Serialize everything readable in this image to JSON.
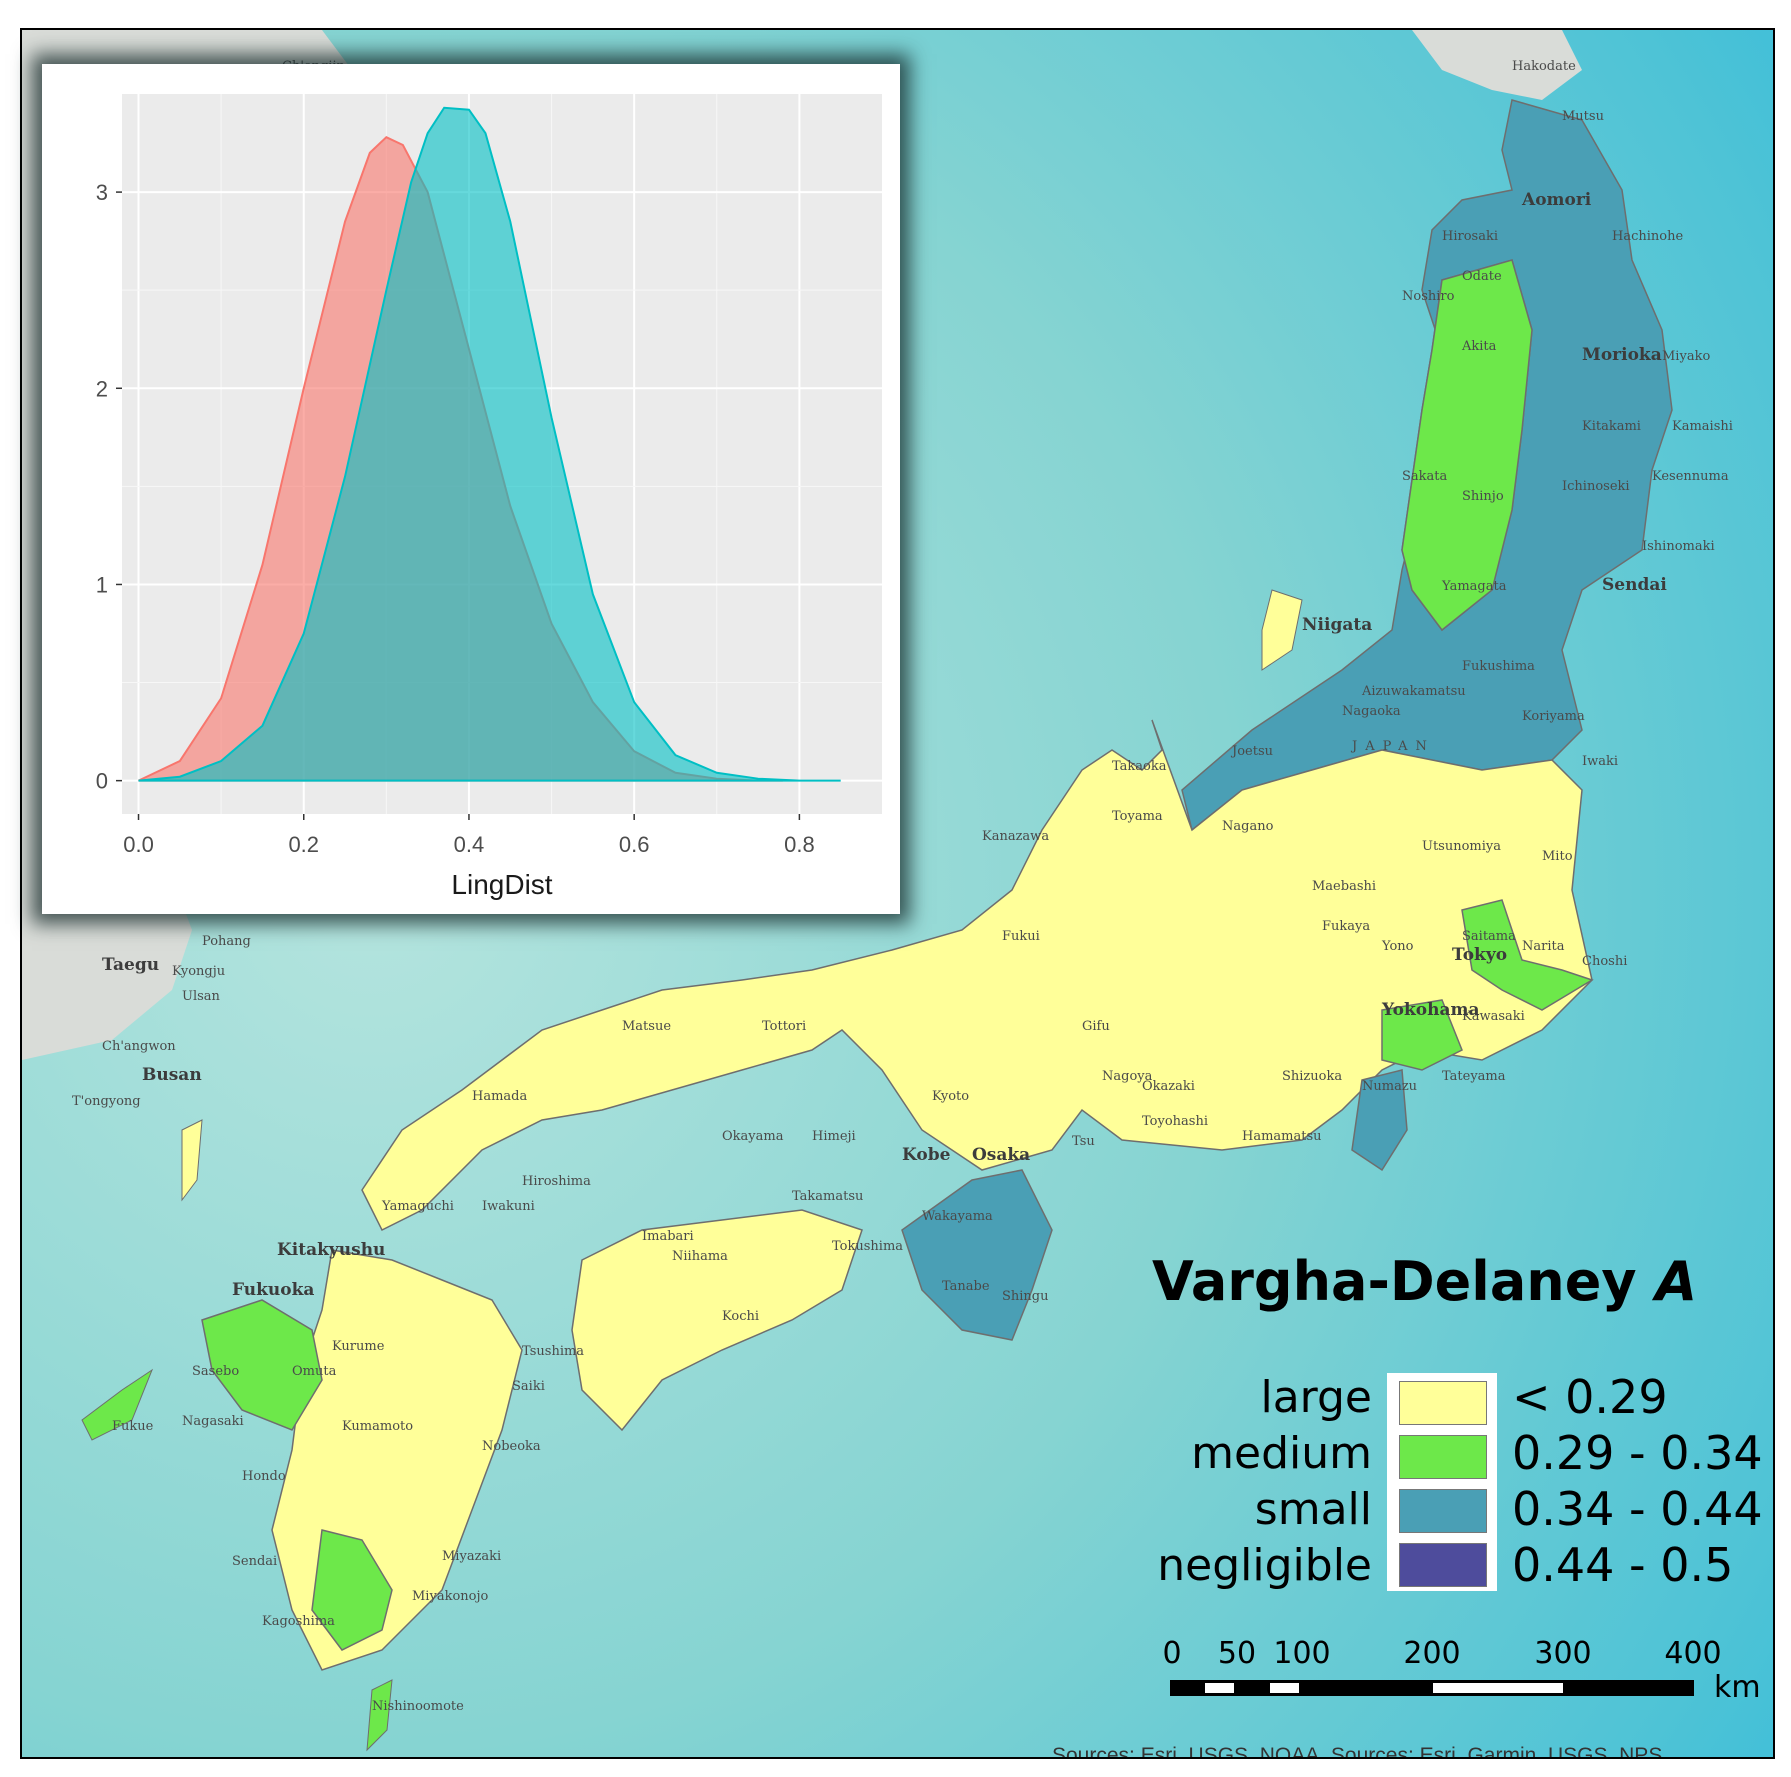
{
  "map": {
    "place_labels": [
      {
        "id": "hakodate",
        "text": "Hakodate"
      },
      {
        "id": "mutsu",
        "text": "Mutsu"
      },
      {
        "id": "aomori",
        "text": "Aomori"
      },
      {
        "id": "hirosaki",
        "text": "Hirosaki"
      },
      {
        "id": "hachinohe",
        "text": "Hachinohe"
      },
      {
        "id": "odate",
        "text": "Odate"
      },
      {
        "id": "noshiro",
        "text": "Noshiro"
      },
      {
        "id": "akita",
        "text": "Akita"
      },
      {
        "id": "morioka",
        "text": "Morioka"
      },
      {
        "id": "miyako",
        "text": "Miyako"
      },
      {
        "id": "kitakami",
        "text": "Kitakami"
      },
      {
        "id": "kamaishi",
        "text": "Kamaishi"
      },
      {
        "id": "sakata",
        "text": "Sakata"
      },
      {
        "id": "shinjo",
        "text": "Shinjo"
      },
      {
        "id": "ichinoseki",
        "text": "Ichinoseki"
      },
      {
        "id": "kesennuma",
        "text": "Kesennuma"
      },
      {
        "id": "ishinomaki",
        "text": "Ishinomaki"
      },
      {
        "id": "yamagata",
        "text": "Yamagata"
      },
      {
        "id": "sendai",
        "text": "Sendai"
      },
      {
        "id": "niigata",
        "text": "Niigata"
      },
      {
        "id": "fukushima",
        "text": "Fukushima"
      },
      {
        "id": "aizuwakamatsu",
        "text": "Aizuwakamatsu"
      },
      {
        "id": "nagaoka",
        "text": "Nagaoka"
      },
      {
        "id": "koriyama",
        "text": "Koriyama"
      },
      {
        "id": "japan",
        "text": "JAPAN"
      },
      {
        "id": "joetsu",
        "text": "Joetsu"
      },
      {
        "id": "iwaki",
        "text": "Iwaki"
      },
      {
        "id": "takaoka",
        "text": "Takaoka"
      },
      {
        "id": "kanazawa",
        "text": "Kanazawa"
      },
      {
        "id": "toyama",
        "text": "Toyama"
      },
      {
        "id": "nagano",
        "text": "Nagano"
      },
      {
        "id": "utsunomiya",
        "text": "Utsunomiya"
      },
      {
        "id": "mito",
        "text": "Mito"
      },
      {
        "id": "maebashi",
        "text": "Maebashi"
      },
      {
        "id": "fukaya",
        "text": "Fukaya"
      },
      {
        "id": "tokyo",
        "text": "Tokyo"
      },
      {
        "id": "narita",
        "text": "Narita"
      },
      {
        "id": "choshi",
        "text": "Choshi"
      },
      {
        "id": "yono",
        "text": "Yono"
      },
      {
        "id": "saitama",
        "text": "Saitama"
      },
      {
        "id": "kawasaki",
        "text": "Kawasaki"
      },
      {
        "id": "yokohama",
        "text": "Yokohama"
      },
      {
        "id": "tateyama",
        "text": "Tateyama"
      },
      {
        "id": "numazu",
        "text": "Numazu"
      },
      {
        "id": "shizuoka",
        "text": "Shizuoka"
      },
      {
        "id": "hamamatsu",
        "text": "Hamamatsu"
      },
      {
        "id": "toyohashi",
        "text": "Toyohashi"
      },
      {
        "id": "okazaki",
        "text": "Okazaki"
      },
      {
        "id": "gifu",
        "text": "Gifu"
      },
      {
        "id": "nagoya",
        "text": "Nagoya"
      },
      {
        "id": "fukui",
        "text": "Fukui"
      },
      {
        "id": "kyoto",
        "text": "Kyoto"
      },
      {
        "id": "osaka",
        "text": "Osaka"
      },
      {
        "id": "kobe",
        "text": "Kobe"
      },
      {
        "id": "tsu",
        "text": "Tsu"
      },
      {
        "id": "wakayama",
        "text": "Wakayama"
      },
      {
        "id": "tanabe",
        "text": "Tanabe"
      },
      {
        "id": "shingu",
        "text": "Shingu"
      },
      {
        "id": "himeji",
        "text": "Himeji"
      },
      {
        "id": "okayama",
        "text": "Okayama"
      },
      {
        "id": "tottori",
        "text": "Tottori"
      },
      {
        "id": "matsue",
        "text": "Matsue"
      },
      {
        "id": "hamada",
        "text": "Hamada"
      },
      {
        "id": "hiroshima",
        "text": "Hiroshima"
      },
      {
        "id": "iwakuni",
        "text": "Iwakuni"
      },
      {
        "id": "yamaguchi",
        "text": "Yamaguchi"
      },
      {
        "id": "takamatsu",
        "text": "Takamatsu"
      },
      {
        "id": "tokushima",
        "text": "Tokushima"
      },
      {
        "id": "imabari",
        "text": "Imabari"
      },
      {
        "id": "niihama",
        "text": "Niihama"
      },
      {
        "id": "kochi",
        "text": "Kochi"
      },
      {
        "id": "kitakyushu",
        "text": "Kitakyushu"
      },
      {
        "id": "fukuoka",
        "text": "Fukuoka"
      },
      {
        "id": "kurume",
        "text": "Kurume"
      },
      {
        "id": "sasebo",
        "text": "Sasebo"
      },
      {
        "id": "omuta",
        "text": "Omuta"
      },
      {
        "id": "nagasaki",
        "text": "Nagasaki"
      },
      {
        "id": "fukue",
        "text": "Fukue"
      },
      {
        "id": "kumamoto",
        "text": "Kumamoto"
      },
      {
        "id": "nobeoka",
        "text": "Nobeoka"
      },
      {
        "id": "saiki",
        "text": "Saiki"
      },
      {
        "id": "tsushima",
        "text": "Tsushima"
      },
      {
        "id": "hondo",
        "text": "Hondo"
      },
      {
        "id": "miyazaki",
        "text": "Miyazaki"
      },
      {
        "id": "miyakonojo",
        "text": "Miyakonojo"
      },
      {
        "id": "sendai-kyushu",
        "text": "Sendai"
      },
      {
        "id": "kagoshima",
        "text": "Kagoshima"
      },
      {
        "id": "nishinoomote",
        "text": "Nishinoomote"
      },
      {
        "id": "taegu",
        "text": "Taegu"
      },
      {
        "id": "pohang",
        "text": "Pohang"
      },
      {
        "id": "kyongju",
        "text": "Kyongju"
      },
      {
        "id": "ulsan",
        "text": "Ulsan"
      },
      {
        "id": "changwon",
        "text": "Ch'angwon"
      },
      {
        "id": "busan",
        "text": "Busan"
      },
      {
        "id": "tongyong",
        "text": "T'ongyong"
      },
      {
        "id": "chongjin",
        "text": "Ch'ongjin"
      }
    ],
    "region_colors": {
      "large": "#ffff99",
      "medium": "#6de84a",
      "small": "#4a9fb5",
      "negligible": "#4e4c9c"
    }
  },
  "legend": {
    "title": "Vargha-Delaney",
    "title_italic": "A",
    "items": [
      {
        "label": "large",
        "range": "< 0.29",
        "color": "#ffff99"
      },
      {
        "label": "medium",
        "range": "0.29 - 0.34",
        "color": "#6de84a"
      },
      {
        "label": "small",
        "range": "0.34 - 0.44",
        "color": "#4a9fb5"
      },
      {
        "label": "negligible",
        "range": "0.44 - 0.5",
        "color": "#4e4c9c"
      }
    ]
  },
  "scale_bar": {
    "ticks": [
      "0",
      "50",
      "100",
      "200",
      "300",
      "400"
    ],
    "unit": "km"
  },
  "attribution": "Sources: Esri, USGS, NOAA, Sources: Esri, Garmin, USGS, NPS",
  "chart_data": {
    "type": "area",
    "xlabel": "LingDist",
    "ylabel": "",
    "xlim": [
      -0.02,
      0.9
    ],
    "ylim": [
      -0.17,
      3.5
    ],
    "x_ticks": [
      "0.0",
      "0.2",
      "0.4",
      "0.6",
      "0.8"
    ],
    "y_ticks": [
      "0",
      "1",
      "2",
      "3"
    ],
    "grid": true,
    "series": [
      {
        "color": "#f8766d",
        "x": [
          0.0,
          0.05,
          0.1,
          0.15,
          0.2,
          0.25,
          0.28,
          0.3,
          0.32,
          0.35,
          0.4,
          0.45,
          0.5,
          0.55,
          0.6,
          0.65,
          0.7,
          0.75,
          0.78
        ],
        "y": [
          0.0,
          0.1,
          0.42,
          1.1,
          2.0,
          2.85,
          3.2,
          3.28,
          3.24,
          3.0,
          2.2,
          1.4,
          0.8,
          0.4,
          0.15,
          0.04,
          0.01,
          0.0,
          0.0
        ]
      },
      {
        "color": "#00bfc4",
        "x": [
          0.0,
          0.05,
          0.1,
          0.15,
          0.2,
          0.25,
          0.3,
          0.33,
          0.35,
          0.37,
          0.4,
          0.42,
          0.45,
          0.5,
          0.55,
          0.6,
          0.65,
          0.7,
          0.75,
          0.8,
          0.85
        ],
        "y": [
          0.0,
          0.02,
          0.1,
          0.28,
          0.75,
          1.55,
          2.5,
          3.05,
          3.3,
          3.43,
          3.42,
          3.3,
          2.85,
          1.85,
          0.95,
          0.4,
          0.13,
          0.04,
          0.01,
          0.0,
          0.0
        ]
      }
    ]
  }
}
